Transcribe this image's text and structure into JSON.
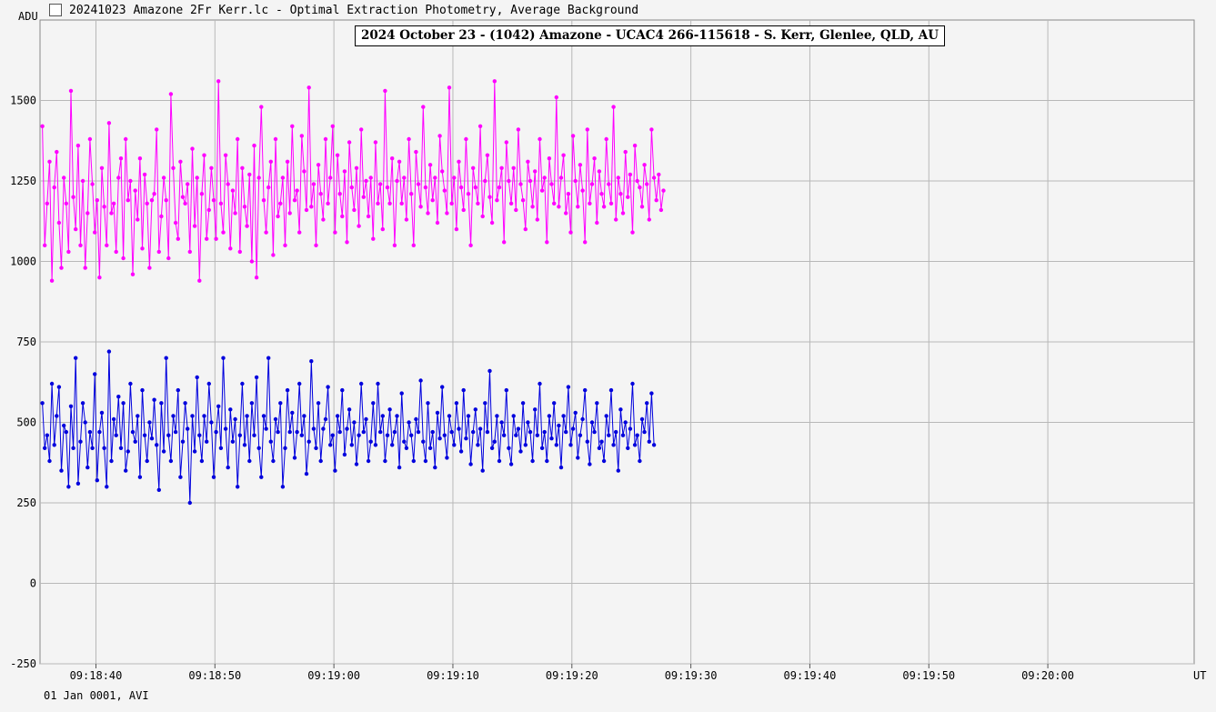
{
  "window": {
    "title": "20241023 Amazone 2Fr Kerr.lc - Optimal Extraction Photometry, Average Background"
  },
  "icons": {
    "app": "app-icon"
  },
  "footer_text": "01 Jan 0001, AVI",
  "chart_data": {
    "type": "line",
    "title": "2024 October 23 - (1042) Amazone - UCAC4 266-115618 - S. Kerr, Glenlee, QLD, AU",
    "ylabel": "ADU",
    "xlabel": "UT",
    "ylim": [
      -250,
      1750
    ],
    "yticks": [
      -250,
      0,
      250,
      500,
      750,
      1000,
      1250,
      1500
    ],
    "xlim_seconds": [
      33515.3,
      33612.3
    ],
    "xticks": [
      {
        "t": 33520,
        "label": "09:18:40"
      },
      {
        "t": 33530,
        "label": "09:18:50"
      },
      {
        "t": 33540,
        "label": "09:19:00"
      },
      {
        "t": 33550,
        "label": "09:19:10"
      },
      {
        "t": 33560,
        "label": "09:19:20"
      },
      {
        "t": 33570,
        "label": "09:19:30"
      },
      {
        "t": 33580,
        "label": "09:19:40"
      },
      {
        "t": 33590,
        "label": "09:19:50"
      },
      {
        "t": 33600,
        "label": "09:20:00"
      }
    ],
    "grid": true,
    "series": [
      {
        "color": "#ff00ff",
        "samples_per_second": 5,
        "values": [
          1420,
          1050,
          1180,
          1310,
          940,
          1230,
          1340,
          1120,
          980,
          1260,
          1180,
          1030,
          1530,
          1200,
          1100,
          1360,
          1050,
          1250,
          980,
          1150,
          1380,
          1240,
          1090,
          1190,
          950,
          1290,
          1170,
          1050,
          1430,
          1150,
          1180,
          1030,
          1260,
          1320,
          1010,
          1380,
          1190,
          1250,
          960,
          1220,
          1130,
          1320,
          1040,
          1270,
          1180,
          980,
          1190,
          1210,
          1410,
          1030,
          1140,
          1260,
          1190,
          1010,
          1520,
          1290,
          1120,
          1070,
          1310,
          1200,
          1180,
          1240,
          1030,
          1350,
          1110,
          1260,
          940,
          1210,
          1330,
          1070,
          1160,
          1290,
          1190,
          1070,
          1560,
          1180,
          1090,
          1330,
          1240,
          1040,
          1220,
          1150,
          1380,
          1030,
          1290,
          1170,
          1110,
          1270,
          1000,
          1360,
          950,
          1260,
          1480,
          1190,
          1090,
          1230,
          1310,
          1020,
          1380,
          1140,
          1180,
          1260,
          1050,
          1310,
          1150,
          1420,
          1190,
          1220,
          1090,
          1390,
          1280,
          1160,
          1540,
          1170,
          1240,
          1050,
          1300,
          1210,
          1130,
          1380,
          1180,
          1260,
          1420,
          1090,
          1330,
          1210,
          1140,
          1280,
          1060,
          1370,
          1230,
          1160,
          1290,
          1110,
          1410,
          1200,
          1250,
          1140,
          1260,
          1070,
          1370,
          1180,
          1240,
          1100,
          1530,
          1230,
          1180,
          1320,
          1050,
          1250,
          1310,
          1180,
          1260,
          1130,
          1380,
          1210,
          1050,
          1340,
          1240,
          1170,
          1480,
          1230,
          1150,
          1300,
          1190,
          1260,
          1120,
          1390,
          1280,
          1220,
          1150,
          1540,
          1180,
          1260,
          1100,
          1310,
          1230,
          1160,
          1380,
          1210,
          1050,
          1290,
          1230,
          1180,
          1420,
          1140,
          1250,
          1330,
          1200,
          1120,
          1560,
          1190,
          1230,
          1290,
          1060,
          1370,
          1250,
          1180,
          1290,
          1160,
          1410,
          1240,
          1190,
          1100,
          1310,
          1250,
          1170,
          1280,
          1130,
          1380,
          1220,
          1260,
          1060,
          1320,
          1240,
          1180,
          1510,
          1170,
          1260,
          1330,
          1150,
          1210,
          1090,
          1390,
          1250,
          1170,
          1300,
          1220,
          1060,
          1410,
          1180,
          1240,
          1320,
          1120,
          1280,
          1210,
          1170,
          1380,
          1240,
          1180,
          1480,
          1130,
          1260,
          1210,
          1150,
          1340,
          1200,
          1270,
          1090,
          1360,
          1250,
          1230,
          1170,
          1300,
          1240,
          1130,
          1410,
          1260,
          1190,
          1270,
          1160,
          1220
        ]
      },
      {
        "color": "#0000dd",
        "samples_per_second": 5,
        "values": [
          560,
          420,
          460,
          380,
          620,
          430,
          520,
          610,
          350,
          490,
          470,
          300,
          550,
          420,
          700,
          310,
          440,
          560,
          500,
          360,
          470,
          420,
          650,
          320,
          470,
          530,
          420,
          300,
          720,
          380,
          510,
          460,
          580,
          420,
          560,
          350,
          410,
          620,
          470,
          440,
          520,
          330,
          600,
          460,
          380,
          500,
          450,
          570,
          430,
          290,
          560,
          410,
          700,
          460,
          380,
          520,
          470,
          600,
          330,
          440,
          560,
          480,
          250,
          520,
          410,
          640,
          460,
          380,
          520,
          440,
          620,
          500,
          330,
          470,
          550,
          420,
          700,
          480,
          360,
          540,
          440,
          510,
          300,
          460,
          620,
          430,
          520,
          380,
          560,
          460,
          640,
          420,
          330,
          520,
          480,
          700,
          440,
          380,
          510,
          470,
          560,
          300,
          420,
          600,
          470,
          530,
          390,
          470,
          620,
          460,
          520,
          340,
          440,
          690,
          480,
          420,
          560,
          380,
          480,
          510,
          610,
          430,
          460,
          350,
          520,
          470,
          600,
          400,
          480,
          540,
          430,
          500,
          370,
          460,
          620,
          470,
          510,
          380,
          440,
          560,
          430,
          620,
          470,
          520,
          380,
          460,
          540,
          430,
          470,
          520,
          360,
          590,
          440,
          420,
          500,
          460,
          380,
          510,
          470,
          630,
          440,
          380,
          560,
          420,
          470,
          360,
          530,
          450,
          610,
          460,
          390,
          520,
          470,
          430,
          560,
          480,
          410,
          600,
          450,
          520,
          370,
          470,
          540,
          430,
          480,
          350,
          560,
          470,
          660,
          420,
          440,
          520,
          380,
          500,
          460,
          600,
          420,
          370,
          520,
          460,
          480,
          410,
          560,
          430,
          500,
          470,
          380,
          540,
          460,
          620,
          420,
          470,
          380,
          520,
          450,
          560,
          430,
          490,
          360,
          520,
          470,
          610,
          430,
          480,
          530,
          390,
          460,
          510,
          600,
          440,
          370,
          500,
          470,
          560,
          420,
          440,
          380,
          520,
          460,
          600,
          430,
          470,
          350,
          540,
          460,
          500,
          420,
          480,
          620,
          430,
          460,
          380,
          510,
          470,
          560,
          440,
          590,
          430
        ]
      }
    ]
  }
}
